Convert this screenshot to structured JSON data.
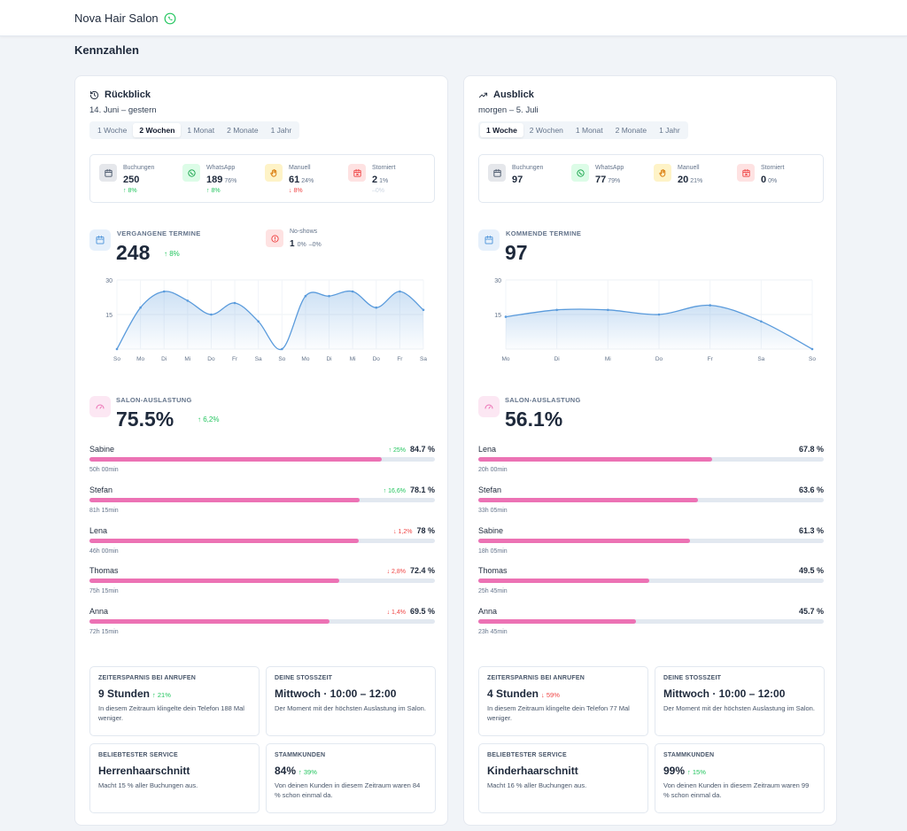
{
  "app": {
    "title": "Nova Hair Salon"
  },
  "section_title": "Kennzahlen",
  "colors": {
    "accent_pink": "#ec72b4",
    "line_blue": "#5a9bdc",
    "up_green": "#22c55e",
    "down_red": "#ef4444"
  },
  "panels": [
    {
      "title": "Rückblick",
      "icon": "history-icon",
      "subtitle": "14. Juni – gestern",
      "tabs": [
        "1 Woche",
        "2 Wochen",
        "1 Monat",
        "2 Monate",
        "1 Jahr"
      ],
      "active_tab": 1,
      "stats": [
        {
          "label": "Buchungen",
          "value": "250",
          "pct": "",
          "change": "↑ 8%",
          "trend": "up",
          "icon": "calendar-icon"
        },
        {
          "label": "WhatsApp",
          "value": "189",
          "pct": "76%",
          "change": "↑ 8%",
          "trend": "up",
          "icon": "whatsapp-icon"
        },
        {
          "label": "Manuell",
          "value": "61",
          "pct": "24%",
          "change": "↓ 8%",
          "trend": "down",
          "icon": "hand-icon"
        },
        {
          "label": "Storniert",
          "value": "2",
          "pct": "1%",
          "change": "–0%",
          "trend": "neutral",
          "icon": "calendar-x-icon"
        }
      ],
      "kpi": {
        "label": "VERGANGENE TERMINE",
        "value": "248",
        "change": "↑ 8%",
        "trend": "up"
      },
      "noshows": {
        "label": "No-shows",
        "value": "1",
        "pct": "0%",
        "change": "–0%"
      },
      "utilization": {
        "label": "SALON-AUSLASTUNG",
        "value": "75.5%",
        "change": "↑ 6,2%",
        "trend": "up"
      },
      "staff": [
        {
          "name": "Sabine",
          "percent": "84.7 %",
          "fill": 84.7,
          "change": "↑ 25%",
          "trend": "up",
          "hours": "50h 00min"
        },
        {
          "name": "Stefan",
          "percent": "78.1 %",
          "fill": 78.1,
          "change": "↑ 16,6%",
          "trend": "up",
          "hours": "81h 15min"
        },
        {
          "name": "Lena",
          "percent": "78 %",
          "fill": 78,
          "change": "↓ 1,2%",
          "trend": "down",
          "hours": "46h 00min"
        },
        {
          "name": "Thomas",
          "percent": "72.4 %",
          "fill": 72.4,
          "change": "↓ 2,8%",
          "trend": "down",
          "hours": "75h 15min"
        },
        {
          "name": "Anna",
          "percent": "69.5 %",
          "fill": 69.5,
          "change": "↓ 1,4%",
          "trend": "down",
          "hours": "72h 15min"
        }
      ],
      "cards": [
        {
          "label": "ZEITERSPARNIS BEI ANRUFEN",
          "value": "9 Stunden",
          "change": "↑ 21%",
          "trend": "up",
          "desc": "In diesem Zeitraum klingelte dein Telefon 188 Mal weniger."
        },
        {
          "label": "DEINE STOSSZEIT",
          "value": "Mittwoch · 10:00 – 12:00",
          "change": "",
          "trend": "",
          "desc": "Der Moment mit der höchsten Auslastung im Salon."
        },
        {
          "label": "BELIEBTESTER SERVICE",
          "value": "Herrenhaarschnitt",
          "change": "",
          "trend": "",
          "desc": "Macht 15 % aller Buchungen aus."
        },
        {
          "label": "STAMMKUNDEN",
          "value": "84%",
          "change": "↑ 39%",
          "trend": "up",
          "desc": "Von deinen Kunden in diesem Zeitraum waren 84 % schon einmal da."
        }
      ]
    },
    {
      "title": "Ausblick",
      "icon": "trending-up-icon",
      "subtitle": "morgen – 5. Juli",
      "tabs": [
        "1 Woche",
        "2 Wochen",
        "1 Monat",
        "2 Monate",
        "1 Jahr"
      ],
      "active_tab": 0,
      "stats": [
        {
          "label": "Buchungen",
          "value": "97",
          "pct": "",
          "change": "",
          "trend": "",
          "icon": "calendar-icon"
        },
        {
          "label": "WhatsApp",
          "value": "77",
          "pct": "79%",
          "change": "",
          "trend": "",
          "icon": "whatsapp-icon"
        },
        {
          "label": "Manuell",
          "value": "20",
          "pct": "21%",
          "change": "",
          "trend": "",
          "icon": "hand-icon"
        },
        {
          "label": "Storniert",
          "value": "0",
          "pct": "0%",
          "change": "",
          "trend": "",
          "icon": "calendar-x-icon"
        }
      ],
      "kpi": {
        "label": "KOMMENDE TERMINE",
        "value": "97",
        "change": "",
        "trend": ""
      },
      "utilization": {
        "label": "SALON-AUSLASTUNG",
        "value": "56.1%",
        "change": "",
        "trend": ""
      },
      "staff": [
        {
          "name": "Lena",
          "percent": "67.8 %",
          "fill": 67.8,
          "change": "",
          "trend": "",
          "hours": "20h 00min"
        },
        {
          "name": "Stefan",
          "percent": "63.6 %",
          "fill": 63.6,
          "change": "",
          "trend": "",
          "hours": "33h 05min"
        },
        {
          "name": "Sabine",
          "percent": "61.3 %",
          "fill": 61.3,
          "change": "",
          "trend": "",
          "hours": "18h 05min"
        },
        {
          "name": "Thomas",
          "percent": "49.5 %",
          "fill": 49.5,
          "change": "",
          "trend": "",
          "hours": "25h 45min"
        },
        {
          "name": "Anna",
          "percent": "45.7 %",
          "fill": 45.7,
          "change": "",
          "trend": "",
          "hours": "23h 45min"
        }
      ],
      "cards": [
        {
          "label": "ZEITERSPARNIS BEI ANRUFEN",
          "value": "4 Stunden",
          "change": "↓ 59%",
          "trend": "down",
          "desc": "In diesem Zeitraum klingelte dein Telefon 77 Mal weniger."
        },
        {
          "label": "DEINE STOSSZEIT",
          "value": "Mittwoch · 10:00 – 12:00",
          "change": "",
          "trend": "",
          "desc": "Der Moment mit der höchsten Auslastung im Salon."
        },
        {
          "label": "BELIEBTESTER SERVICE",
          "value": "Kinderhaarschnitt",
          "change": "",
          "trend": "",
          "desc": "Macht 16 % aller Buchungen aus."
        },
        {
          "label": "STAMMKUNDEN",
          "value": "99%",
          "change": "↑ 15%",
          "trend": "up",
          "desc": "Von deinen Kunden in diesem Zeitraum waren 99 % schon einmal da."
        }
      ]
    }
  ],
  "chart_data": [
    {
      "type": "area",
      "title": "",
      "x": [
        "So",
        "Mo",
        "Di",
        "Mi",
        "Do",
        "Fr",
        "Sa",
        "So",
        "Mo",
        "Di",
        "Mi",
        "Do",
        "Fr",
        "Sa"
      ],
      "series": [
        {
          "values": [
            0,
            18,
            25,
            21,
            15,
            20,
            12,
            0,
            23,
            23,
            25,
            18,
            25,
            17
          ]
        }
      ],
      "yticks": [
        "30",
        "15"
      ],
      "ylim": [
        0,
        30
      ],
      "grid": true
    },
    {
      "type": "area",
      "title": "",
      "x": [
        "Mo",
        "Di",
        "Mi",
        "Do",
        "Fr",
        "Sa",
        "So"
      ],
      "series": [
        {
          "values": [
            14,
            17,
            17,
            15,
            19,
            12,
            0
          ]
        }
      ],
      "yticks": [
        "30",
        "15"
      ],
      "ylim": [
        0,
        30
      ],
      "grid": true
    }
  ]
}
